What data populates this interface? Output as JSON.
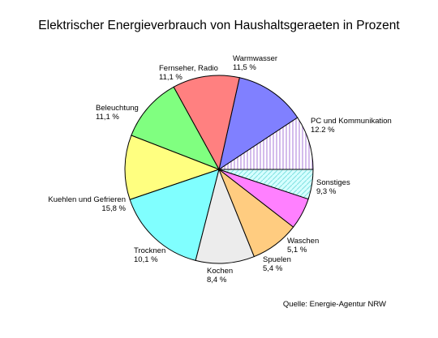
{
  "chart_data": {
    "type": "pie",
    "title": "Elektrischer Energieverbrauch von Haushaltsgeraeten in Prozent",
    "source": "Quelle: Energie-Agentur NRW",
    "slices": [
      {
        "label": "Sonstiges",
        "value": 9.3,
        "value_text": "9,3 %",
        "color": "#dcc8ee",
        "hatched": true
      },
      {
        "label": "PC und Kommunikation",
        "value": 12.2,
        "value_text": "12.2 %",
        "color": "#8080ff",
        "hatched": false
      },
      {
        "label": "Warmwasser",
        "value": 11.5,
        "value_text": "11,5 %",
        "color": "#ff8080",
        "hatched": false
      },
      {
        "label": "Fernseher, Radio",
        "value": 11.1,
        "value_text": "11,1 %",
        "color": "#80ff80",
        "hatched": false
      },
      {
        "label": "Beleuchtung",
        "value": 11.1,
        "value_text": "11,1 %",
        "color": "#ffff80",
        "hatched": false
      },
      {
        "label": "Kuehlen und Gefrieren",
        "value": 15.8,
        "value_text": "15,8 %",
        "color": "#80ffff",
        "hatched": false
      },
      {
        "label": "Trocknen",
        "value": 10.1,
        "value_text": "10,1 %",
        "color": "#ececec",
        "hatched": false
      },
      {
        "label": "Kochen",
        "value": 8.4,
        "value_text": "8,4 %",
        "color": "#ffcc80",
        "hatched": false
      },
      {
        "label": "Spuelen",
        "value": 5.4,
        "value_text": "5,4 %",
        "color": "#ff80ff",
        "hatched": false
      },
      {
        "label": "Waschen",
        "value": 5.1,
        "value_text": "5,1 %",
        "color": "#c8ffff",
        "hatched": true
      }
    ]
  }
}
